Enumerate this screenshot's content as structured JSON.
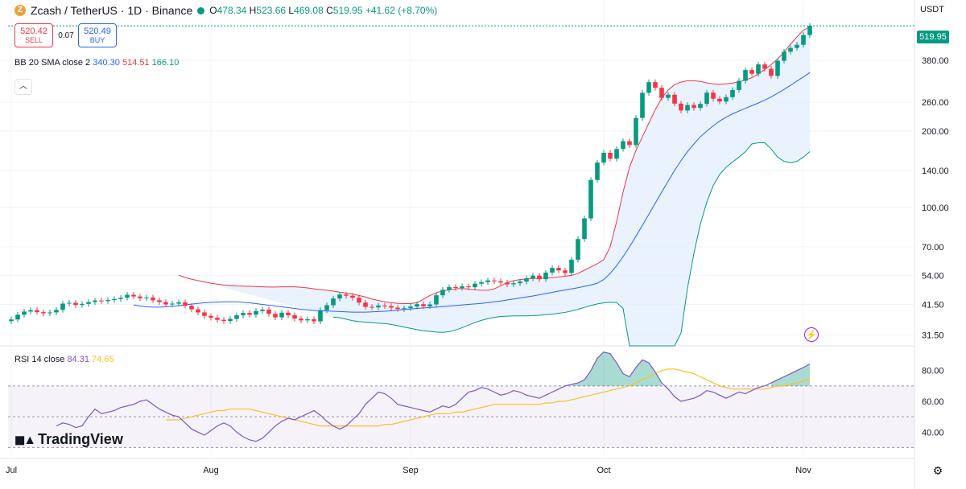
{
  "header": {
    "symbol": "Zcash / TetherUS · 1D · Binance",
    "coin_icon": "zcash-coin-icon",
    "open_label": "O",
    "open": "478.34",
    "high_label": "H",
    "high": "523.66",
    "low_label": "L",
    "low": "469.08",
    "close_label": "C",
    "close": "519.95",
    "change": "+41.62 (+8.70%)"
  },
  "trade": {
    "sell_price": "520.42",
    "sell_label": "SELL",
    "spread": "0.07",
    "buy_price": "520.49",
    "buy_label": "BUY"
  },
  "bb": {
    "label": "BB 20 SMA close 2",
    "basis": "340.30",
    "upper": "514.51",
    "lower": "166.10"
  },
  "rsi_legend": {
    "label": "RSI 14 close",
    "rsi": "84.31",
    "ma": "74.65"
  },
  "currency": "USDT",
  "last_price": "519.95",
  "brand": "TradingView",
  "colors": {
    "up": "#089981",
    "down": "#f23645",
    "basis": "#2962ff",
    "upper": "#f23645",
    "lower": "#089981",
    "rsi": "#7e57c2",
    "rsi_ma": "#f7c325",
    "band_fill": "#e3effd"
  },
  "chart_data": [
    {
      "type": "candlestick",
      "scale": "log",
      "y_ticks": [
        380,
        260,
        200,
        140,
        100,
        70,
        54,
        41.5,
        31.5
      ],
      "y_tick_labels": [
        "380.00",
        "260.00",
        "200.00",
        "140.00",
        "100.00",
        "70.00",
        "54.00",
        "41.50",
        "31.50"
      ],
      "x_labels": [
        "Jul",
        "Aug",
        "Sep",
        "Oct",
        "Nov"
      ],
      "x_label_dates": [
        "2025-07-01",
        "2025-08-01",
        "2025-09-01",
        "2025-10-01",
        "2025-11-01"
      ],
      "first_date": "2025-07-01",
      "closes": [
        36.2,
        37.8,
        38.9,
        39.4,
        38.7,
        38.3,
        38.6,
        39.5,
        41.8,
        42.1,
        41.3,
        41.7,
        42.4,
        43.0,
        42.8,
        43.2,
        43.6,
        44.1,
        45.3,
        44.6,
        43.9,
        44.2,
        43.1,
        42.4,
        41.5,
        41.8,
        42.3,
        41.0,
        39.7,
        38.6,
        37.4,
        36.8,
        36.1,
        35.7,
        36.4,
        37.6,
        38.4,
        37.8,
        39.1,
        39.6,
        38.1,
        36.9,
        38.5,
        37.6,
        36.5,
        35.9,
        36.3,
        35.6,
        39.4,
        41.2,
        43.8,
        45.4,
        44.9,
        44.1,
        42.2,
        40.6,
        40.4,
        41.1,
        40.9,
        40.3,
        39.8,
        40.1,
        40.7,
        41.6,
        40.8,
        41.5,
        45.1,
        47.4,
        48.6,
        48.2,
        48.9,
        48.5,
        50.1,
        50.8,
        51.6,
        51.2,
        50.6,
        49.8,
        50.3,
        51.1,
        52.6,
        53.9,
        52.2,
        55.4,
        57.8,
        56.5,
        55.2,
        62.3,
        75.1,
        90.6,
        128.4,
        150.3,
        164.2,
        155.7,
        170.1,
        182.5,
        176.3,
        225.4,
        283.1,
        311.9,
        296.4,
        270.5,
        278.3,
        256.7,
        241.2,
        253.4,
        246.9,
        256.2,
        283.6,
        268.4,
        261.7,
        272.2,
        290.5,
        315.7,
        348.2,
        336.5,
        366.4,
        352.1,
        330.2,
        378.6,
        411.2,
        425.5,
        437.8,
        478.3,
        519.95
      ],
      "upper_band": [
        54.1,
        53.0,
        52.2,
        51.5,
        50.9,
        50.3,
        49.9,
        49.5,
        49.3,
        49.1,
        49.0,
        48.9,
        48.8,
        48.7,
        48.6,
        48.6,
        48.7,
        48.7,
        48.7,
        48.5,
        48.2,
        47.8,
        47.5,
        47.2,
        46.8,
        46.4,
        46.0,
        45.6,
        45.0,
        44.4,
        43.6,
        43.0,
        42.5,
        42.2,
        41.9,
        41.8,
        41.8,
        42.2,
        43.5,
        45.0,
        46.2,
        46.9,
        47.4,
        47.8,
        48.0,
        47.7,
        47.4,
        47.2,
        47.2,
        47.8,
        49.1,
        50.6,
        51.5,
        52.0,
        52.3,
        52.5,
        52.6,
        52.8,
        53.0,
        53.3,
        53.6,
        54.0,
        55.0,
        56.6,
        58.3,
        60.0,
        62.3,
        70.0,
        88.0,
        115.0,
        144.0,
        168.0,
        190.0,
        215.0,
        243.0,
        270.0,
        290.0,
        305.0,
        312.0,
        316.0,
        316.0,
        314.0,
        310.0,
        307.0,
        306.0,
        307.0,
        309.0,
        313.0,
        318.0,
        325.0,
        336.0,
        350.0,
        366.0,
        385.0,
        410.0,
        440.0,
        470.0,
        500.0,
        514.51
      ],
      "upper_band_start": 0,
      "basis_band": [
        41.3,
        40.9,
        40.6,
        40.5,
        40.5,
        40.6,
        40.8,
        41.0,
        41.3,
        41.6,
        41.9,
        42.1,
        42.3,
        42.4,
        42.5,
        42.5,
        42.5,
        42.3,
        42.1,
        41.8,
        41.5,
        41.2,
        40.9,
        40.6,
        40.3,
        40.0,
        39.7,
        39.5,
        39.3,
        39.2,
        39.1,
        39.0,
        38.9,
        38.8,
        38.7,
        38.7,
        38.7,
        38.8,
        38.9,
        39.0,
        39.2,
        39.4,
        39.6,
        39.8,
        40.0,
        40.2,
        40.4,
        40.5,
        40.7,
        40.9,
        41.1,
        41.3,
        41.5,
        41.7,
        41.9,
        42.2,
        42.5,
        42.8,
        43.2,
        43.6,
        44.0,
        44.4,
        44.8,
        45.3,
        45.8,
        46.3,
        46.8,
        47.3,
        47.8,
        48.3,
        48.9,
        49.5,
        50.3,
        52.0,
        55.0,
        59.0,
        64.0,
        70.0,
        77.0,
        85.0,
        94.0,
        104.0,
        115.0,
        127.0,
        140.0,
        153.0,
        166.0,
        178.0,
        190.0,
        200.0,
        210.0,
        219.0,
        227.0,
        234.0,
        240.0,
        246.0,
        252.0,
        258.0,
        265.0,
        273.0,
        282.0,
        292.0,
        303.0,
        315.0,
        327.0,
        340.3
      ],
      "lower_band": [
        37.0,
        36.8,
        36.3,
        35.8,
        35.5,
        35.3,
        35.2,
        35.0,
        34.9,
        34.6,
        34.2,
        33.8,
        33.4,
        33.0,
        32.7,
        32.5,
        32.3,
        32.2,
        32.4,
        32.9,
        33.6,
        34.4,
        35.2,
        35.9,
        36.5,
        36.9,
        37.2,
        37.3,
        37.4,
        37.4,
        37.4,
        37.5,
        37.6,
        37.8,
        38.0,
        38.3,
        38.6,
        39.1,
        39.7,
        40.4,
        41.1,
        41.7,
        42.1,
        42.3,
        42.2,
        40.0,
        28.0,
        14.0,
        6.0,
        4.0,
        5.0,
        7.0,
        12.0,
        20.0,
        32.0,
        48.0,
        66.0,
        86.0,
        105.0,
        122.0,
        135.0,
        144.0,
        151.0,
        158.0,
        166.0,
        178.0,
        180.0,
        180.0,
        170.0,
        158.0,
        152.0,
        150.0,
        152.0,
        158.0,
        166.1
      ],
      "rsi": [
        44,
        46,
        45,
        43,
        44,
        50,
        55,
        52,
        53,
        54,
        56,
        57,
        58,
        60,
        61,
        58,
        55,
        53,
        51,
        50,
        46,
        42,
        40,
        38,
        41,
        44,
        46,
        44,
        40,
        37,
        35,
        34,
        36,
        40,
        44,
        47,
        49,
        48,
        50,
        52,
        54,
        51,
        47,
        44,
        42,
        44,
        48,
        52,
        58,
        62,
        66,
        65,
        62,
        58,
        57,
        56,
        55,
        54,
        53,
        55,
        57,
        56,
        58,
        62,
        66,
        67,
        69,
        68,
        66,
        64,
        65,
        67,
        66,
        64,
        63,
        62,
        64,
        66,
        68,
        70,
        71,
        72,
        74,
        80,
        88,
        92,
        91,
        85,
        78,
        76,
        82,
        87,
        85,
        79,
        72,
        68,
        63,
        60,
        61,
        62,
        64,
        67,
        66,
        64,
        62,
        64,
        66,
        65,
        67,
        69,
        70,
        72,
        74,
        76,
        78,
        80,
        82,
        84.31
      ],
      "rsi_ma": [
        48,
        48,
        48,
        49,
        50,
        51,
        52,
        53,
        54,
        54,
        55,
        55,
        55,
        55,
        54,
        53,
        52,
        51,
        50,
        49,
        48,
        47,
        46,
        45,
        44,
        44,
        44,
        44,
        44,
        44,
        44,
        44,
        44,
        44,
        45,
        45,
        46,
        47,
        48,
        49,
        50,
        51,
        52,
        52,
        52,
        53,
        53,
        54,
        55,
        56,
        57,
        58,
        58,
        58,
        58,
        58,
        58,
        58,
        58,
        59,
        59,
        60,
        60,
        61,
        62,
        63,
        64,
        65,
        66,
        67,
        68,
        69,
        70,
        72,
        74,
        76,
        78,
        80,
        81,
        81,
        80,
        79,
        78,
        76,
        74,
        72,
        70,
        69,
        68,
        68,
        68,
        68,
        68,
        68,
        69,
        70,
        70,
        71,
        72,
        73,
        74.65
      ],
      "rsi_y_ticks": [
        80,
        60,
        40
      ],
      "rsi_y_tick_labels": [
        "80.00",
        "60.00",
        "40.00"
      ],
      "rsi_levels": [
        70,
        50,
        30
      ],
      "grid": true
    }
  ]
}
